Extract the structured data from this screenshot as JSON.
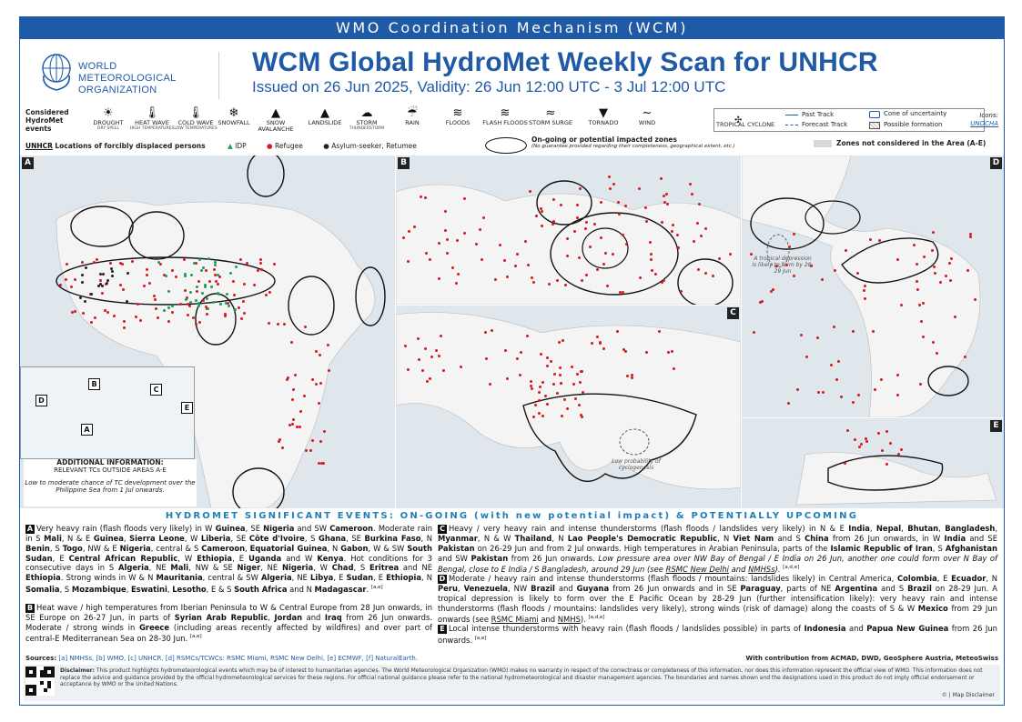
{
  "header": {
    "banner": "WMO Coordination Mechanism (WCM)",
    "org_lines": [
      "WORLD",
      "METEOROLOGICAL",
      "ORGANIZATION"
    ],
    "title": "WCM Global HydroMet Weekly Scan for UNHCR",
    "subtitle": "Issued on 26 Jun 2025, Validity: 26 Jun 12:00 UTC - 3 Jul 12:00 UTC"
  },
  "legend": {
    "events_title": [
      "Considered",
      "HydroMet",
      "events"
    ],
    "events": [
      {
        "label": "DROUGHT",
        "sub": "DRY SPELL",
        "icon": "drought-icon",
        "glyph": "☀"
      },
      {
        "label": "HEAT WAVE",
        "sub": "HIGH TEMPERATURES",
        "icon": "heat-wave-icon",
        "glyph": "🌡"
      },
      {
        "label": "COLD WAVE",
        "sub": "LOW TEMPERATURES",
        "icon": "cold-wave-icon",
        "glyph": "🌡"
      },
      {
        "label": "SNOWFALL",
        "sub": "",
        "icon": "snowflake-icon",
        "glyph": "❄"
      },
      {
        "label": "SNOW AVALANCHE",
        "sub": "",
        "icon": "avalanche-icon",
        "glyph": "▲"
      },
      {
        "label": "LANDSLIDE",
        "sub": "",
        "icon": "landslide-icon",
        "glyph": "▲"
      },
      {
        "label": "STORM",
        "sub": "THUNDERSTORM",
        "icon": "storm-icon",
        "glyph": "☁"
      },
      {
        "label": "RAIN",
        "sub": "",
        "icon": "rain-icon",
        "glyph": "☔"
      },
      {
        "label": "FLOODS",
        "sub": "",
        "icon": "floods-icon",
        "glyph": "≋"
      },
      {
        "label": "FLASH FLOODS",
        "sub": "",
        "icon": "flash-flood-icon",
        "glyph": "≋"
      },
      {
        "label": "STORM SURGE",
        "sub": "",
        "icon": "storm-surge-icon",
        "glyph": "≈"
      },
      {
        "label": "TORNADO",
        "sub": "",
        "icon": "tornado-icon",
        "glyph": "▼"
      },
      {
        "label": "WIND",
        "sub": "",
        "icon": "wind-icon",
        "glyph": "~"
      }
    ],
    "tc": {
      "cyclone": "TROPICAL CYCLONE",
      "past": "Past Track",
      "forecast": "Forecast Track",
      "cone": "Cone of uncertainty",
      "possible": "Possible formation"
    },
    "icons_credit": {
      "label": "Icons:",
      "source": "UNOCHA"
    },
    "locations": {
      "org": "UNHCR",
      "label": "Locations of forcibly displaced persons",
      "idp": "IDP",
      "refugee": "Refugee",
      "asylum": "Asylum-seeker, Retumee",
      "impacted_title": "On-going or potential impacted zones",
      "impacted_note": "(No guarantee provided regarding their completeness, geographical extent, etc.)",
      "not_considered": "Zones not considered in the Area (A-E)"
    },
    "colors": {
      "idp": "#1a9e5b",
      "refugee": "#d7191c",
      "asylum": "#222222",
      "brand": "#1f5aa6"
    }
  },
  "maps": {
    "panels": [
      "A",
      "B",
      "C",
      "D",
      "E"
    ],
    "notes": {
      "tropical_depression": "A tropical depression is likely to form by 28-29 Jun",
      "low_probability": "Low probability of cyclogenesis"
    },
    "additional_info": {
      "heading": "ADDITIONAL INFORMATION:",
      "sub": "RELEVANT TCs OUTSIDE AREAS A-E",
      "text": "Low to moderate chance of TC development over the Philippine Sea from 1 Jul onwards."
    }
  },
  "section": {
    "title": "HYDROMET SIGNIFICANT EVENTS: ON-GOING (with new potential impact) & POTENTIALLY UPCOMING"
  },
  "events": {
    "A": [
      {
        "t": "Very heavy rain (flash floods very likely) in W "
      },
      {
        "t": "Guinea",
        "b": true
      },
      {
        "t": ", SE "
      },
      {
        "t": "Nigeria",
        "b": true
      },
      {
        "t": " and SW "
      },
      {
        "t": "Cameroon",
        "b": true
      },
      {
        "t": ". Moderate rain in S "
      },
      {
        "t": "Mali",
        "b": true
      },
      {
        "t": ", N & E "
      },
      {
        "t": "Guinea",
        "b": true
      },
      {
        "t": ", "
      },
      {
        "t": "Sierra Leone",
        "b": true
      },
      {
        "t": ", W "
      },
      {
        "t": "Liberia",
        "b": true
      },
      {
        "t": ", SE "
      },
      {
        "t": "Côte d'Ivoire",
        "b": true
      },
      {
        "t": ", S "
      },
      {
        "t": "Ghana",
        "b": true
      },
      {
        "t": ", SE "
      },
      {
        "t": "Burkina Faso",
        "b": true
      },
      {
        "t": ", N "
      },
      {
        "t": "Benin",
        "b": true
      },
      {
        "t": ", S "
      },
      {
        "t": "Togo",
        "b": true
      },
      {
        "t": ", NW & E "
      },
      {
        "t": "Nigeria",
        "b": true
      },
      {
        "t": ", central & S "
      },
      {
        "t": "Cameroon",
        "b": true
      },
      {
        "t": ", "
      },
      {
        "t": "Equatorial Guinea",
        "b": true
      },
      {
        "t": ", N "
      },
      {
        "t": "Gabon",
        "b": true
      },
      {
        "t": ", W & SW "
      },
      {
        "t": "South Sudan",
        "b": true
      },
      {
        "t": ", E "
      },
      {
        "t": "Central African Republic",
        "b": true
      },
      {
        "t": ", W "
      },
      {
        "t": "Ethiopia",
        "b": true
      },
      {
        "t": ", E "
      },
      {
        "t": "Uganda",
        "b": true
      },
      {
        "t": " and W "
      },
      {
        "t": "Kenya",
        "b": true
      },
      {
        "t": ". Hot conditions for 3 consecutive days in S "
      },
      {
        "t": "Algeria",
        "b": true
      },
      {
        "t": ", NE "
      },
      {
        "t": "Mali",
        "b": true
      },
      {
        "t": ", NW & SE "
      },
      {
        "t": "Niger",
        "b": true
      },
      {
        "t": ", NE "
      },
      {
        "t": "Nigeria",
        "b": true
      },
      {
        "t": ", W "
      },
      {
        "t": "Chad",
        "b": true
      },
      {
        "t": ", S "
      },
      {
        "t": "Eritrea",
        "b": true
      },
      {
        "t": " and NE "
      },
      {
        "t": "Ethiopia",
        "b": true
      },
      {
        "t": ". Strong winds in W & "
      },
      {
        "t": "N "
      },
      {
        "t": "Mauritania",
        "b": true
      },
      {
        "t": ", central & SW "
      },
      {
        "t": "Algeria",
        "b": true
      },
      {
        "t": ", NE "
      },
      {
        "t": "Libya",
        "b": true
      },
      {
        "t": ", E "
      },
      {
        "t": "Sudan",
        "b": true
      },
      {
        "t": ", E "
      },
      {
        "t": "Ethiopia",
        "b": true
      },
      {
        "t": ", N "
      },
      {
        "t": "Somalia",
        "b": true
      },
      {
        "t": ", S "
      },
      {
        "t": "Mozambique",
        "b": true
      },
      {
        "t": ", "
      },
      {
        "t": "Eswatini",
        "b": true
      },
      {
        "t": ", "
      },
      {
        "t": "Lesotho",
        "b": true
      },
      {
        "t": ", E & S "
      },
      {
        "t": "South Africa",
        "b": true
      },
      {
        "t": " and N "
      },
      {
        "t": "Madagascar",
        "b": true
      },
      {
        "t": ". ",
        "sup": "[a,e]"
      }
    ],
    "B": [
      {
        "t": "Heat wave / high temperatures from Iberian Peninsula to W & Central Europe from 28 Jun onwards, in SE Europe on 26-27 Jun, in parts of "
      },
      {
        "t": "Syrian Arab Republic",
        "b": true
      },
      {
        "t": ", "
      },
      {
        "t": "Jordan",
        "b": true
      },
      {
        "t": " and "
      },
      {
        "t": "Iraq",
        "b": true
      },
      {
        "t": " from 26 Jun onwards. Moderate / strong winds in "
      },
      {
        "t": "Greece",
        "b": true
      },
      {
        "t": " (including areas recently affected by wildfires) and over part of central-E Mediterranean Sea on 28-30 Jun. ",
        "sup": "[a,e]"
      }
    ],
    "C": [
      {
        "t": "Heavy / very heavy rain and intense thunderstorms (flash floods / landslides very likely) in N & E "
      },
      {
        "t": "India",
        "b": true
      },
      {
        "t": ", "
      },
      {
        "t": "Nepal",
        "b": true
      },
      {
        "t": ", "
      },
      {
        "t": "Bhutan",
        "b": true
      },
      {
        "t": ", "
      },
      {
        "t": "Bangladesh",
        "b": true
      },
      {
        "t": ", "
      },
      {
        "t": "Myanmar",
        "b": true
      },
      {
        "t": ", N & W "
      },
      {
        "t": "Thailand",
        "b": true
      },
      {
        "t": ", N "
      },
      {
        "t": "Lao People's Democratic Republic",
        "b": true
      },
      {
        "t": ", N "
      },
      {
        "t": "Viet Nam",
        "b": true
      },
      {
        "t": " and S "
      },
      {
        "t": "China",
        "b": true
      },
      {
        "t": " from 26 Jun onwards, in W "
      },
      {
        "t": "India",
        "b": true
      },
      {
        "t": " and SE "
      },
      {
        "t": "Pakistan",
        "b": true
      },
      {
        "t": " on 26-29 Jun and from 2 Jul onwards. High temperatures in Arabian Peninsula, parts of the "
      },
      {
        "t": "Islamic Republic of Iran",
        "b": true
      },
      {
        "t": ", S "
      },
      {
        "t": "Afghanistan",
        "b": true
      },
      {
        "t": " and SW "
      },
      {
        "t": "Pakistan",
        "b": true
      },
      {
        "t": " from 26 Jun onwards. "
      },
      {
        "t": "Low pressure area over NW Bay of Bengal / E India on 26 Jun, another one could form over N Bay of Bengal, close to E India / S Bangladesh, around 29 Jun (see ",
        "i": true
      },
      {
        "t": "RSMC New Delhi",
        "u": true,
        "i": true
      },
      {
        "t": " and ",
        "i": true
      },
      {
        "t": "NMHSs",
        "u": true,
        "i": true
      },
      {
        "t": ").",
        "i": true
      },
      {
        "t": " ",
        "sup": "[a,d,e]"
      }
    ],
    "D": [
      {
        "t": "Moderate / heavy rain and intense thunderstorms (flash floods / mountains: landslides likely) in Central America, "
      },
      {
        "t": "Colombia",
        "b": true
      },
      {
        "t": ", E "
      },
      {
        "t": "Ecuador",
        "b": true
      },
      {
        "t": ", N "
      },
      {
        "t": "Peru",
        "b": true
      },
      {
        "t": ", "
      },
      {
        "t": "Venezuela",
        "b": true
      },
      {
        "t": ", NW "
      },
      {
        "t": "Brazil",
        "b": true
      },
      {
        "t": " and "
      },
      {
        "t": "Guyana",
        "b": true
      },
      {
        "t": " from 26 Jun onwards and in SE "
      },
      {
        "t": "Paraguay",
        "b": true
      },
      {
        "t": ", parts of NE "
      },
      {
        "t": "Argentina",
        "b": true
      },
      {
        "t": " and S "
      },
      {
        "t": "Brazil",
        "b": true
      },
      {
        "t": " on 28-29 Jun. A tropical depression is likely to form over the E Pacific Ocean by 28-29 Jun (further intensification likely): very heavy rain and intense thunderstorms (flash floods / mountains: landslides very likely), strong winds (risk of damage) along the coasts of S & W "
      },
      {
        "t": "Mexico",
        "b": true
      },
      {
        "t": " from 29 Jun onwards (see "
      },
      {
        "t": "RSMC Miami",
        "u": true
      },
      {
        "t": " and "
      },
      {
        "t": "NMHS",
        "u": true
      },
      {
        "t": "). ",
        "sup": "[a,d,e]"
      }
    ],
    "E": [
      {
        "t": "Local intense thunderstorms with heavy rain (flash floods / landslides possible) in parts of "
      },
      {
        "t": "Indonesia",
        "b": true
      },
      {
        "t": " and "
      },
      {
        "t": "Papua New Guinea",
        "b": true
      },
      {
        "t": " from 26 Jun onwards. ",
        "sup": "[a,e]"
      }
    ]
  },
  "sources": {
    "label": "Sources:",
    "list": " [a] NMHSs, [b] WMO, [c] UNHCR, [d] RSMCs/TCWCs: RSMC Miami, RSMC New Delhi, [e] ECMWF, [f] NaturalEarth.",
    "contribution": "With contribution from ACMAD, DWD, GeoSphere Austria, MeteoSwiss"
  },
  "disclaimer": {
    "label": "Disclaimer:",
    "text": " This product highlights hydrometeorological events which may be of interest to humanitarian agencies. The World Meteorological Organization (WMO) makes no warranty in respect of the correctness or completeness of this information, nor does this information represent the official view of WMO. This information does not replace the advice and guidance provided by the official hydrometeorological services for these regions. For official national guidance please refer to the national hydrometeorological and disaster management agencies. The boundaries and names shown and the designations used in this product do not imply official endorsement or acceptance by WMO or the United Nations.",
    "map_disclaimer": "© | Map Disclaimer"
  }
}
